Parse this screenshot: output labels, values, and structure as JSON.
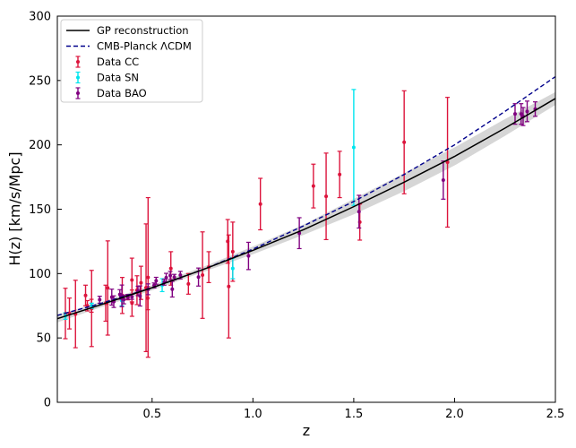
{
  "chart_data": {
    "type": "scatter",
    "xlabel": "z",
    "ylabel": "H(z) [km/s/Mpc]",
    "xlim": [
      0.03,
      2.5
    ],
    "ylim": [
      0,
      300
    ],
    "xticks": [
      "0.5",
      "1.0",
      "1.5",
      "2.0",
      "2.5"
    ],
    "yticks": [
      "0",
      "50",
      "100",
      "150",
      "200",
      "250",
      "300"
    ],
    "legend_position": "top-left",
    "legend": [
      {
        "label": "GP reconstruction",
        "kind": "line-solid",
        "color": "#000000"
      },
      {
        "label": "CMB-Planck ΛCDM",
        "kind": "line-dashed",
        "color": "#00008b"
      },
      {
        "label": "Data CC",
        "kind": "errorbar",
        "color": "#dc143c"
      },
      {
        "label": "Data SN",
        "kind": "errorbar",
        "color": "#00e5ee"
      },
      {
        "label": "Data BAO",
        "kind": "errorbar",
        "color": "#800080"
      }
    ],
    "series": [
      {
        "name": "GP reconstruction",
        "kind": "line",
        "color": "#000000",
        "points": [
          [
            0.03,
            65
          ],
          [
            0.25,
            76
          ],
          [
            0.5,
            89
          ],
          [
            0.75,
            103
          ],
          [
            1.0,
            118
          ],
          [
            1.25,
            134
          ],
          [
            1.5,
            152
          ],
          [
            1.75,
            171
          ],
          [
            2.0,
            191
          ],
          [
            2.25,
            213
          ],
          [
            2.5,
            236
          ]
        ],
        "band": [
          [
            0.03,
            62,
            68
          ],
          [
            0.25,
            74,
            78
          ],
          [
            0.5,
            87,
            91
          ],
          [
            0.75,
            101,
            105
          ],
          [
            1.0,
            115,
            121
          ],
          [
            1.25,
            130,
            138
          ],
          [
            1.5,
            146,
            158
          ],
          [
            1.75,
            164,
            178
          ],
          [
            2.0,
            184,
            198
          ],
          [
            2.25,
            207,
            220
          ],
          [
            2.5,
            231,
            241
          ]
        ]
      },
      {
        "name": "CMB-Planck ΛCDM",
        "kind": "dashed-line",
        "color": "#00008b",
        "points": [
          [
            0.03,
            67.5
          ],
          [
            0.25,
            77
          ],
          [
            0.5,
            89
          ],
          [
            0.75,
            103
          ],
          [
            1.0,
            119
          ],
          [
            1.25,
            137
          ],
          [
            1.5,
            156
          ],
          [
            1.75,
            177
          ],
          [
            2.0,
            200
          ],
          [
            2.25,
            226
          ],
          [
            2.5,
            253
          ]
        ]
      },
      {
        "name": "Data CC",
        "kind": "errorbar",
        "color": "#dc143c",
        "points": [
          [
            0.07,
            69,
            19.6
          ],
          [
            0.09,
            69,
            12
          ],
          [
            0.12,
            68.6,
            26.2
          ],
          [
            0.17,
            83,
            8
          ],
          [
            0.179,
            75,
            4
          ],
          [
            0.199,
            75,
            5
          ],
          [
            0.2,
            72.9,
            29.6
          ],
          [
            0.27,
            77,
            14
          ],
          [
            0.28,
            88.8,
            36.6
          ],
          [
            0.352,
            83,
            14
          ],
          [
            0.38,
            81.5,
            1.9
          ],
          [
            0.4,
            95,
            17
          ],
          [
            0.4004,
            77,
            10.2
          ],
          [
            0.425,
            87.1,
            11.2
          ],
          [
            0.445,
            92.8,
            12.9
          ],
          [
            0.47,
            89,
            49.6
          ],
          [
            0.4783,
            80.9,
            9
          ],
          [
            0.48,
            97,
            62
          ],
          [
            0.593,
            104,
            13
          ],
          [
            0.68,
            92,
            8
          ],
          [
            0.75,
            98.8,
            33.6
          ],
          [
            0.781,
            105,
            12
          ],
          [
            0.875,
            125,
            17
          ],
          [
            0.88,
            90,
            40
          ],
          [
            0.9,
            117,
            23
          ],
          [
            1.037,
            154,
            20
          ],
          [
            1.3,
            168,
            17
          ],
          [
            1.363,
            160,
            33.6
          ],
          [
            1.43,
            177,
            18
          ],
          [
            1.53,
            140,
            14
          ],
          [
            1.75,
            202,
            40
          ],
          [
            1.965,
            186.5,
            50.4
          ]
        ]
      },
      {
        "name": "Data SN",
        "kind": "errorbar",
        "color": "#00e5ee",
        "points": [
          [
            0.07,
            67,
            2.5
          ],
          [
            0.2,
            75,
            2
          ],
          [
            0.35,
            79,
            4
          ],
          [
            0.55,
            91,
            5
          ],
          [
            0.9,
            104,
            8
          ],
          [
            1.5,
            198,
            45
          ]
        ]
      },
      {
        "name": "Data BAO",
        "kind": "errorbar",
        "color": "#800080",
        "points": [
          [
            0.24,
            79.7,
            2.7
          ],
          [
            0.3,
            81.7,
            6.2
          ],
          [
            0.31,
            78.2,
            4.5
          ],
          [
            0.34,
            83.8,
            3.7
          ],
          [
            0.35,
            82.7,
            8.4
          ],
          [
            0.36,
            79.9,
            3.4
          ],
          [
            0.38,
            81.9,
            1.9
          ],
          [
            0.4,
            82.0,
            2.0
          ],
          [
            0.43,
            86.5,
            3.7
          ],
          [
            0.44,
            82.6,
            7.8
          ],
          [
            0.48,
            87.8,
            4.2
          ],
          [
            0.51,
            90.8,
            1.9
          ],
          [
            0.52,
            94.4,
            2.7
          ],
          [
            0.56,
            93.3,
            2.3
          ],
          [
            0.57,
            96.8,
            3.4
          ],
          [
            0.59,
            98.5,
            3.2
          ],
          [
            0.6,
            87.9,
            6.1
          ],
          [
            0.61,
            97.3,
            2.1
          ],
          [
            0.64,
            98.8,
            2.9
          ],
          [
            0.73,
            97.3,
            7.0
          ],
          [
            0.978,
            113.7,
            10.6
          ],
          [
            1.23,
            131.4,
            12.0
          ],
          [
            1.526,
            148.1,
            12.7
          ],
          [
            1.944,
            172.6,
            14.8
          ],
          [
            2.3,
            224,
            8
          ],
          [
            2.33,
            224,
            8
          ],
          [
            2.34,
            222,
            7
          ],
          [
            2.36,
            226,
            8
          ],
          [
            2.4,
            227.8,
            5.6
          ]
        ]
      }
    ]
  }
}
